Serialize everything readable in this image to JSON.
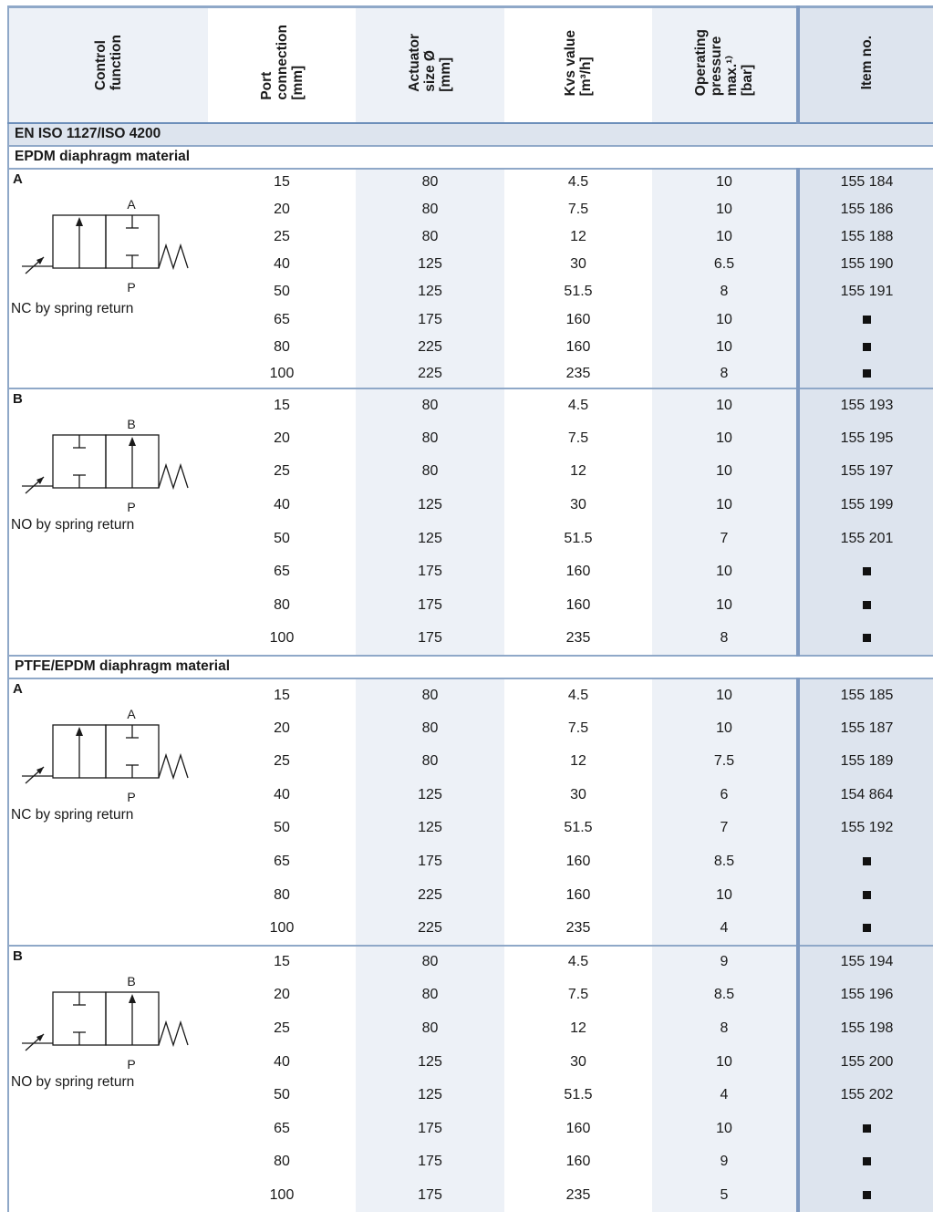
{
  "headers": [
    "Control\nfunction",
    "Port\nconnection\n[mm]",
    "Actuator\nsize Ø\n[mm]",
    "Kvs value\n[m³/h]",
    "Operating\npressure\nmax.¹⁾\n[bar]",
    "Item no."
  ],
  "standard": "EN ISO 1127/ISO 4200",
  "sections": [
    {
      "material": "EPDM diaphragm material",
      "groups": [
        {
          "function": "A",
          "port_top": "A",
          "port_bottom": "P",
          "caption": "NC by spring return",
          "rows": [
            {
              "port": "15",
              "actuator": "80",
              "kvs": "4.5",
              "pressure": "10",
              "item": "155 184"
            },
            {
              "port": "20",
              "actuator": "80",
              "kvs": "7.5",
              "pressure": "10",
              "item": "155 186"
            },
            {
              "port": "25",
              "actuator": "80",
              "kvs": "12",
              "pressure": "10",
              "item": "155 188"
            },
            {
              "port": "40",
              "actuator": "125",
              "kvs": "30",
              "pressure": "6.5",
              "item": "155 190"
            },
            {
              "port": "50",
              "actuator": "125",
              "kvs": "51.5",
              "pressure": "8",
              "item": "155 191"
            },
            {
              "port": "65",
              "actuator": "175",
              "kvs": "160",
              "pressure": "10",
              "item": "■"
            },
            {
              "port": "80",
              "actuator": "225",
              "kvs": "160",
              "pressure": "10",
              "item": "■"
            },
            {
              "port": "100",
              "actuator": "225",
              "kvs": "235",
              "pressure": "8",
              "item": "■"
            }
          ]
        },
        {
          "function": "B",
          "port_top": "B",
          "port_bottom": "P",
          "caption": "NO by spring return",
          "rows": [
            {
              "port": "15",
              "actuator": "80",
              "kvs": "4.5",
              "pressure": "10",
              "item": "155 193"
            },
            {
              "port": "20",
              "actuator": "80",
              "kvs": "7.5",
              "pressure": "10",
              "item": "155 195"
            },
            {
              "port": "25",
              "actuator": "80",
              "kvs": "12",
              "pressure": "10",
              "item": "155 197"
            },
            {
              "port": "40",
              "actuator": "125",
              "kvs": "30",
              "pressure": "10",
              "item": "155 199"
            },
            {
              "port": "50",
              "actuator": "125",
              "kvs": "51.5",
              "pressure": "7",
              "item": "155 201"
            },
            {
              "port": "65",
              "actuator": "175",
              "kvs": "160",
              "pressure": "10",
              "item": "■"
            },
            {
              "port": "80",
              "actuator": "175",
              "kvs": "160",
              "pressure": "10",
              "item": "■"
            },
            {
              "port": "100",
              "actuator": "175",
              "kvs": "235",
              "pressure": "8",
              "item": "■"
            }
          ]
        }
      ]
    },
    {
      "material": "PTFE/EPDM diaphragm material",
      "groups": [
        {
          "function": "A",
          "port_top": "A",
          "port_bottom": "P",
          "caption": "NC by spring return",
          "rows": [
            {
              "port": "15",
              "actuator": "80",
              "kvs": "4.5",
              "pressure": "10",
              "item": "155 185"
            },
            {
              "port": "20",
              "actuator": "80",
              "kvs": "7.5",
              "pressure": "10",
              "item": "155 187"
            },
            {
              "port": "25",
              "actuator": "80",
              "kvs": "12",
              "pressure": "7.5",
              "item": "155 189"
            },
            {
              "port": "40",
              "actuator": "125",
              "kvs": "30",
              "pressure": "6",
              "item": "154 864"
            },
            {
              "port": "50",
              "actuator": "125",
              "kvs": "51.5",
              "pressure": "7",
              "item": "155 192"
            },
            {
              "port": "65",
              "actuator": "175",
              "kvs": "160",
              "pressure": "8.5",
              "item": "■"
            },
            {
              "port": "80",
              "actuator": "225",
              "kvs": "160",
              "pressure": "10",
              "item": "■"
            },
            {
              "port": "100",
              "actuator": "225",
              "kvs": "235",
              "pressure": "4",
              "item": "■"
            }
          ]
        },
        {
          "function": "B",
          "port_top": "B",
          "port_bottom": "P",
          "caption": "NO by spring return",
          "rows": [
            {
              "port": "15",
              "actuator": "80",
              "kvs": "4.5",
              "pressure": "9",
              "item": "155 194"
            },
            {
              "port": "20",
              "actuator": "80",
              "kvs": "7.5",
              "pressure": "8.5",
              "item": "155 196"
            },
            {
              "port": "25",
              "actuator": "80",
              "kvs": "12",
              "pressure": "8",
              "item": "155 198"
            },
            {
              "port": "40",
              "actuator": "125",
              "kvs": "30",
              "pressure": "10",
              "item": "155 200"
            },
            {
              "port": "50",
              "actuator": "125",
              "kvs": "51.5",
              "pressure": "4",
              "item": "155 202"
            },
            {
              "port": "65",
              "actuator": "175",
              "kvs": "160",
              "pressure": "10",
              "item": "■"
            },
            {
              "port": "80",
              "actuator": "175",
              "kvs": "160",
              "pressure": "9",
              "item": "■"
            },
            {
              "port": "100",
              "actuator": "175",
              "kvs": "235",
              "pressure": "5",
              "item": "■"
            }
          ]
        }
      ]
    }
  ]
}
